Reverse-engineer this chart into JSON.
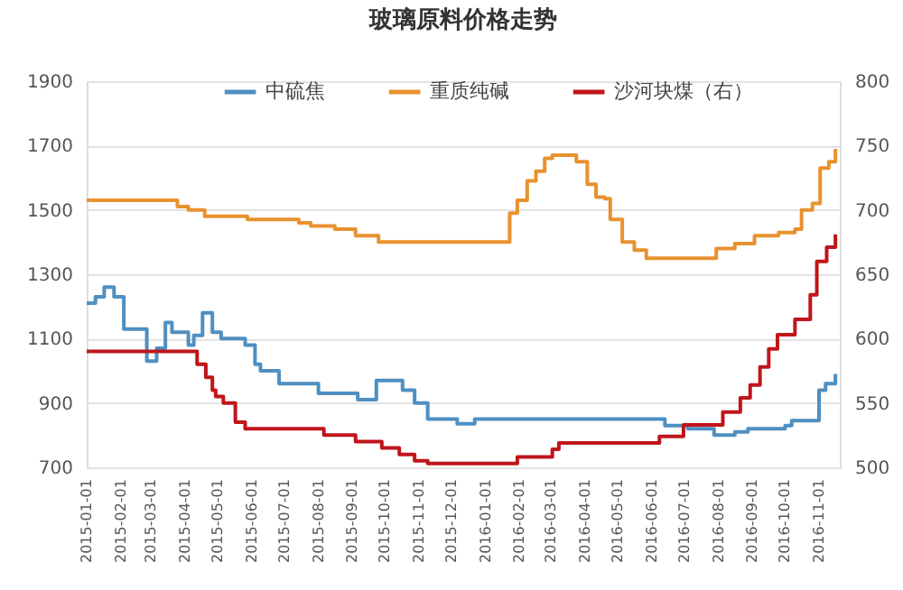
{
  "chart_data": {
    "type": "step",
    "title": "玻璃原料价格走势",
    "legend": "top",
    "grid": "y",
    "xlim": [
      "2015-01-01",
      "2016-11-20"
    ],
    "xticks": [
      "2015-01-01",
      "2015-02-01",
      "2015-03-01",
      "2015-04-01",
      "2015-05-01",
      "2015-06-01",
      "2015-07-01",
      "2015-08-01",
      "2015-09-01",
      "2015-10-01",
      "2015-11-01",
      "2015-12-01",
      "2016-01-01",
      "2016-02-01",
      "2016-03-01",
      "2016-04-01",
      "2016-05-01",
      "2016-06-01",
      "2016-07-01",
      "2016-08-01",
      "2016-09-01",
      "2016-10-01",
      "2016-11-01"
    ],
    "ylim": [
      700,
      1900
    ],
    "yticks": [
      700,
      900,
      1100,
      1300,
      1500,
      1700,
      1900
    ],
    "y2lim": [
      500,
      800
    ],
    "y2ticks": [
      500,
      550,
      600,
      650,
      700,
      750,
      800
    ],
    "series": [
      {
        "name": "中硫焦",
        "color": "#4f8fc1",
        "x": [
          "2015-01-01",
          "2015-01-09",
          "2015-01-17",
          "2015-01-26",
          "2015-02-04",
          "2015-02-25",
          "2015-03-06",
          "2015-03-14",
          "2015-03-20",
          "2015-04-04",
          "2015-04-09",
          "2015-04-17",
          "2015-04-26",
          "2015-05-04",
          "2015-05-26",
          "2015-06-04",
          "2015-06-09",
          "2015-06-26",
          "2015-08-01",
          "2015-09-06",
          "2015-09-23",
          "2015-10-17",
          "2015-10-28",
          "2015-11-09",
          "2015-12-06",
          "2015-12-22",
          "2016-06-13",
          "2016-07-04",
          "2016-07-28",
          "2016-08-16",
          "2016-08-28",
          "2016-10-01",
          "2016-10-07",
          "2016-11-01",
          "2016-11-07",
          "2016-11-16"
        ],
        "values": [
          1210,
          1230,
          1260,
          1230,
          1130,
          1030,
          1070,
          1150,
          1120,
          1080,
          1110,
          1180,
          1120,
          1100,
          1080,
          1020,
          1000,
          960,
          930,
          910,
          970,
          940,
          900,
          850,
          835,
          850,
          830,
          820,
          800,
          810,
          820,
          830,
          845,
          940,
          960,
          990
        ]
      },
      {
        "name": "重质纯碱",
        "color": "#e8922f",
        "x": [
          "2015-01-01",
          "2015-03-25",
          "2015-04-04",
          "2015-04-19",
          "2015-05-28",
          "2015-07-14",
          "2015-07-25",
          "2015-08-16",
          "2015-09-04",
          "2015-09-25",
          "2016-01-23",
          "2016-01-30",
          "2016-02-08",
          "2016-02-16",
          "2016-02-24",
          "2016-03-02",
          "2016-03-24",
          "2016-04-03",
          "2016-04-11",
          "2016-04-19",
          "2016-04-24",
          "2016-05-05",
          "2016-05-16",
          "2016-05-27",
          "2016-07-30",
          "2016-08-16",
          "2016-09-03",
          "2016-09-25",
          "2016-10-10",
          "2016-10-16",
          "2016-10-26",
          "2016-11-02",
          "2016-11-10",
          "2016-11-16"
        ],
        "values": [
          1530,
          1510,
          1500,
          1480,
          1470,
          1460,
          1450,
          1440,
          1420,
          1400,
          1490,
          1530,
          1590,
          1620,
          1660,
          1670,
          1650,
          1580,
          1540,
          1535,
          1470,
          1400,
          1375,
          1350,
          1380,
          1395,
          1420,
          1430,
          1440,
          1500,
          1520,
          1630,
          1650,
          1690
        ]
      },
      {
        "name": "沙河块煤（右）",
        "color": "#c0151b",
        "axis": "y2",
        "x": [
          "2015-01-01",
          "2015-04-12",
          "2015-04-20",
          "2015-04-26",
          "2015-04-29",
          "2015-05-06",
          "2015-05-17",
          "2015-05-26",
          "2015-08-06",
          "2015-09-04",
          "2015-09-28",
          "2015-10-14",
          "2015-10-28",
          "2015-11-09",
          "2016-01-30",
          "2016-03-02",
          "2016-03-08",
          "2016-06-08",
          "2016-06-30",
          "2016-08-05",
          "2016-08-21",
          "2016-08-30",
          "2016-09-08",
          "2016-09-16",
          "2016-09-24",
          "2016-10-10",
          "2016-10-24",
          "2016-10-30",
          "2016-11-08",
          "2016-11-16"
        ],
        "values": [
          590,
          580,
          570,
          560,
          555,
          550,
          535,
          530,
          525,
          520,
          515,
          510,
          505,
          503,
          508,
          514,
          519,
          524,
          533,
          543,
          554,
          564,
          578,
          592,
          603,
          615,
          634,
          660,
          671,
          681
        ]
      }
    ]
  }
}
